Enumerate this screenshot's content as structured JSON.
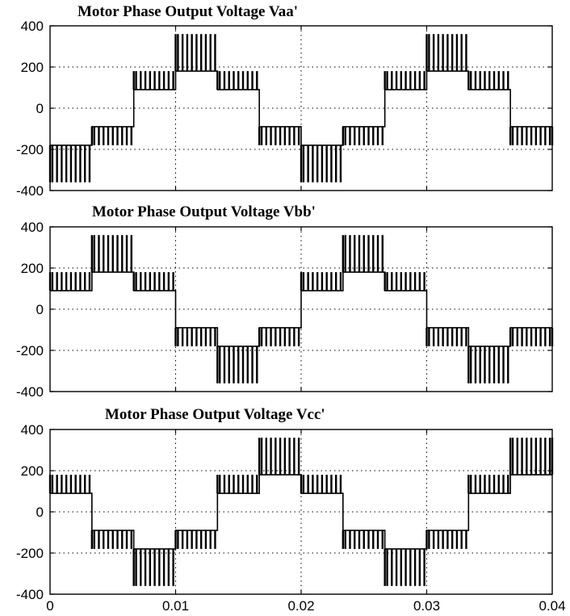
{
  "chart_data": [
    {
      "type": "line",
      "title": "Motor Phase Output Voltage Vaa'",
      "xlim": [
        0,
        0.04
      ],
      "ylim": [
        -400,
        400
      ],
      "yticks": [
        "400",
        "200",
        "0",
        "-200",
        "-400"
      ],
      "xticks": [],
      "grid": true,
      "levels": [
        -1,
        -0.5,
        0.5,
        1,
        0.5,
        -0.5,
        -1,
        -0.5,
        0.5,
        1,
        0.5,
        -0.5
      ],
      "segment_duration": 0.003333,
      "series": [
        {
          "x": [
            0,
            0.003333,
            0.006667,
            0.01,
            0.013333,
            0.016667,
            0.02,
            0.023333,
            0.026667,
            0.03,
            0.033333,
            0.036667,
            0.04
          ],
          "pulse_low": [
            -180,
            -90,
            90,
            180,
            90,
            -90,
            -180,
            -90,
            90,
            180,
            90,
            -90
          ],
          "pulse_high": [
            -360,
            -180,
            180,
            360,
            180,
            -180,
            -360,
            -180,
            180,
            360,
            180,
            -180
          ]
        }
      ]
    },
    {
      "type": "line",
      "title": "Motor Phase Output Voltage Vbb'",
      "xlim": [
        0,
        0.04
      ],
      "ylim": [
        -400,
        400
      ],
      "yticks": [
        "400",
        "200",
        "0",
        "-200",
        "-400"
      ],
      "xticks": [],
      "grid": true,
      "levels": [
        0.5,
        1,
        0.5,
        -0.5,
        -1,
        -0.5,
        0.5,
        1,
        0.5,
        -0.5,
        -1,
        -0.5
      ],
      "segment_duration": 0.003333,
      "series": [
        {
          "x": [
            0,
            0.003333,
            0.006667,
            0.01,
            0.013333,
            0.016667,
            0.02,
            0.023333,
            0.026667,
            0.03,
            0.033333,
            0.036667,
            0.04
          ],
          "pulse_low": [
            90,
            180,
            90,
            -90,
            -180,
            -90,
            90,
            180,
            90,
            -90,
            -180,
            -90
          ],
          "pulse_high": [
            180,
            360,
            180,
            -180,
            -360,
            -180,
            180,
            360,
            180,
            -180,
            -360,
            -180
          ]
        }
      ]
    },
    {
      "type": "line",
      "title": "Motor Phase Output Voltage Vcc'",
      "xlim": [
        0,
        0.04
      ],
      "ylim": [
        -400,
        400
      ],
      "yticks": [
        "400",
        "200",
        "0",
        "-200",
        "-400"
      ],
      "xticks": [
        "0",
        "0.01",
        "0.02",
        "0.03",
        "0.04"
      ],
      "grid": true,
      "levels": [
        0.5,
        -0.5,
        -1,
        -0.5,
        0.5,
        1,
        0.5,
        -0.5,
        -1,
        -0.5,
        0.5,
        1
      ],
      "segment_duration": 0.003333,
      "series": [
        {
          "x": [
            0,
            0.003333,
            0.006667,
            0.01,
            0.013333,
            0.016667,
            0.02,
            0.023333,
            0.026667,
            0.03,
            0.033333,
            0.036667,
            0.04
          ],
          "pulse_low": [
            90,
            -90,
            -180,
            -90,
            90,
            180,
            90,
            -90,
            -180,
            -90,
            90,
            180
          ],
          "pulse_high": [
            180,
            -180,
            -360,
            -180,
            180,
            360,
            180,
            -180,
            -360,
            -180,
            180,
            360
          ]
        }
      ]
    }
  ]
}
